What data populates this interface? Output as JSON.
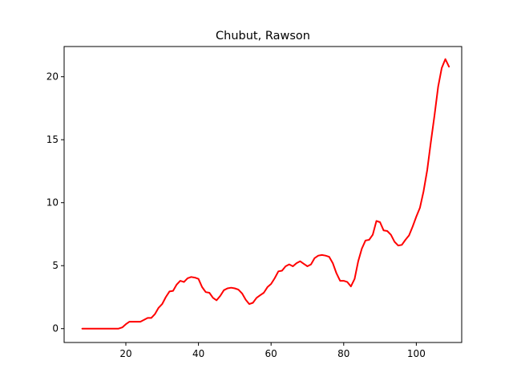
{
  "chart_data": {
    "type": "line",
    "title": "Chubut, Rawson",
    "xlabel": "",
    "ylabel": "",
    "xlim": [
      3,
      112.5
    ],
    "ylim": [
      -1.1,
      22.4
    ],
    "xticks": [
      20,
      40,
      60,
      80,
      100
    ],
    "yticks": [
      0,
      5,
      10,
      15,
      20
    ],
    "grid": false,
    "legend": "none",
    "series": [
      {
        "color": "#ff0000",
        "x": [
          8,
          9,
          10,
          11,
          12,
          13,
          14,
          15,
          16,
          17,
          18,
          19,
          20,
          21,
          22,
          23,
          24,
          25,
          26,
          27,
          28,
          29,
          30,
          31,
          32,
          33,
          34,
          35,
          36,
          37,
          38,
          39,
          40,
          41,
          42,
          43,
          44,
          45,
          46,
          47,
          48,
          49,
          50,
          51,
          52,
          53,
          54,
          55,
          56,
          57,
          58,
          59,
          60,
          61,
          62,
          63,
          64,
          65,
          66,
          67,
          68,
          69,
          70,
          71,
          72,
          73,
          74,
          75,
          76,
          77,
          78,
          79,
          80,
          81,
          82,
          83,
          84,
          85,
          86,
          87,
          88,
          89,
          90,
          91,
          92,
          93,
          94,
          95,
          96,
          97,
          98,
          99,
          100,
          101,
          102,
          103,
          104,
          105,
          106,
          107,
          108,
          109
        ],
        "y": [
          0,
          0,
          0,
          0,
          0,
          0,
          0,
          0,
          0,
          0,
          0,
          0.1,
          0.35,
          0.55,
          0.55,
          0.55,
          0.55,
          0.7,
          0.85,
          0.85,
          1.15,
          1.65,
          1.95,
          2.5,
          2.95,
          3.0,
          3.5,
          3.8,
          3.7,
          4.0,
          4.1,
          4.05,
          3.95,
          3.3,
          2.9,
          2.85,
          2.45,
          2.25,
          2.6,
          3.05,
          3.2,
          3.25,
          3.2,
          3.1,
          2.8,
          2.3,
          1.95,
          2.05,
          2.45,
          2.65,
          2.85,
          3.3,
          3.55,
          4.0,
          4.55,
          4.6,
          4.95,
          5.1,
          4.95,
          5.2,
          5.35,
          5.15,
          4.95,
          5.1,
          5.6,
          5.8,
          5.85,
          5.8,
          5.7,
          5.2,
          4.4,
          3.8,
          3.8,
          3.7,
          3.35,
          3.95,
          5.35,
          6.35,
          7.0,
          7.05,
          7.45,
          8.55,
          8.45,
          7.8,
          7.75,
          7.45,
          6.9,
          6.6,
          6.65,
          7.05,
          7.4,
          8.1,
          8.9,
          9.6,
          10.9,
          12.6,
          14.8,
          16.9,
          19.2,
          20.7,
          21.4,
          20.8
        ]
      }
    ]
  }
}
